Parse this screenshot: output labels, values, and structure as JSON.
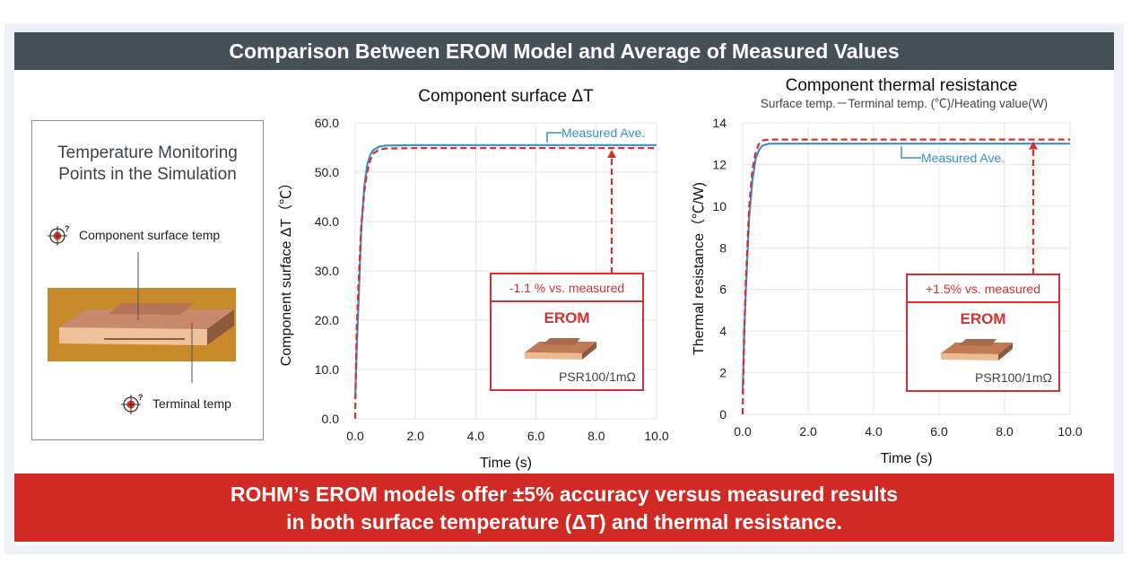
{
  "header": {
    "title": "Comparison Between EROM Model and Average of Measured Values"
  },
  "monitor_panel": {
    "title_line1": "Temperature Monitoring",
    "title_line2": "Points in the Simulation",
    "points": [
      {
        "label": "Component surface temp",
        "icon": "target-question-icon"
      },
      {
        "label": "Terminal temp",
        "icon": "target-question-icon"
      }
    ]
  },
  "footer": {
    "line1": "ROHM’s EROM models offer ±5% accuracy versus measured results",
    "line2": "in both surface temperature (ΔT) and thermal resistance."
  },
  "colors": {
    "measured": "#3a8fd0",
    "erom": "#d63030",
    "header": "#465157",
    "footer": "#d12a24"
  },
  "chart_data": [
    {
      "type": "line",
      "title": "Component surface ΔT",
      "xlabel": "Time (s)",
      "ylabel": "Component surface ΔT（℃）",
      "xlim": [
        0,
        10
      ],
      "ylim": [
        0,
        60
      ],
      "xticks": [
        "0.0",
        "2.0",
        "4.0",
        "6.0",
        "8.0",
        "10.0"
      ],
      "yticks": [
        "0.0",
        "10.0",
        "20.0",
        "30.0",
        "40.0",
        "50.0",
        "60.0"
      ],
      "grid": true,
      "series": [
        {
          "name": "Measured Ave.",
          "style": "solid",
          "x": [
            0,
            0.05,
            0.1,
            0.2,
            0.3,
            0.4,
            0.5,
            0.6,
            0.8,
            1.0,
            2,
            4,
            6,
            8,
            10
          ],
          "y": [
            4,
            14,
            22,
            38,
            47,
            51.5,
            53.5,
            54.5,
            55.2,
            55.4,
            55.5,
            55.5,
            55.5,
            55.5,
            55.5
          ]
        },
        {
          "name": "EROM",
          "style": "dashed",
          "x": [
            0,
            0.01,
            0.05,
            0.1,
            0.2,
            0.3,
            0.4,
            0.5,
            0.6,
            0.8,
            1.0,
            2,
            4,
            6,
            8,
            10
          ],
          "y": [
            0,
            4,
            18,
            26,
            39,
            46,
            50,
            52.5,
            53.8,
            54.6,
            54.8,
            54.9,
            54.9,
            54.9,
            54.9,
            54.9
          ]
        }
      ],
      "annotation": {
        "diff": "-1.1 % vs. measured",
        "model": "EROM",
        "part": "PSR100/1mΩ"
      }
    },
    {
      "type": "line",
      "title": "Component thermal resistance",
      "subtitle": "Surface temp.－Terminal temp. (℃)/Heating value(W)",
      "xlabel": "Time (s)",
      "ylabel": "Thermal resistance（℃/W)",
      "xlim": [
        0,
        10
      ],
      "ylim": [
        0,
        14
      ],
      "xticks": [
        "0.0",
        "2.0",
        "4.0",
        "6.0",
        "8.0",
        "10.0"
      ],
      "yticks": [
        "0",
        "2",
        "4",
        "6",
        "8",
        "10",
        "12",
        "14"
      ],
      "grid": true,
      "series": [
        {
          "name": "Measured Ave.",
          "style": "solid",
          "x": [
            0,
            0.05,
            0.1,
            0.2,
            0.3,
            0.4,
            0.5,
            0.6,
            0.8,
            1.0,
            2,
            4,
            6,
            8,
            10
          ],
          "y": [
            1,
            4,
            6,
            9.5,
            11.3,
            12.3,
            12.7,
            12.9,
            13.0,
            13.0,
            13.0,
            13.0,
            13.0,
            13.0,
            13.0
          ]
        },
        {
          "name": "EROM",
          "style": "dashed",
          "x": [
            0,
            0.01,
            0.05,
            0.1,
            0.2,
            0.3,
            0.4,
            0.5,
            0.6,
            0.8,
            1.0,
            2,
            4,
            6,
            8,
            10
          ],
          "y": [
            0,
            1,
            4,
            6.5,
            10,
            11.8,
            12.6,
            13.0,
            13.15,
            13.2,
            13.2,
            13.2,
            13.2,
            13.2,
            13.2,
            13.2
          ]
        }
      ],
      "annotation": {
        "diff": "+1.5% vs. measured",
        "model": "EROM",
        "part": "PSR100/1mΩ"
      }
    }
  ]
}
